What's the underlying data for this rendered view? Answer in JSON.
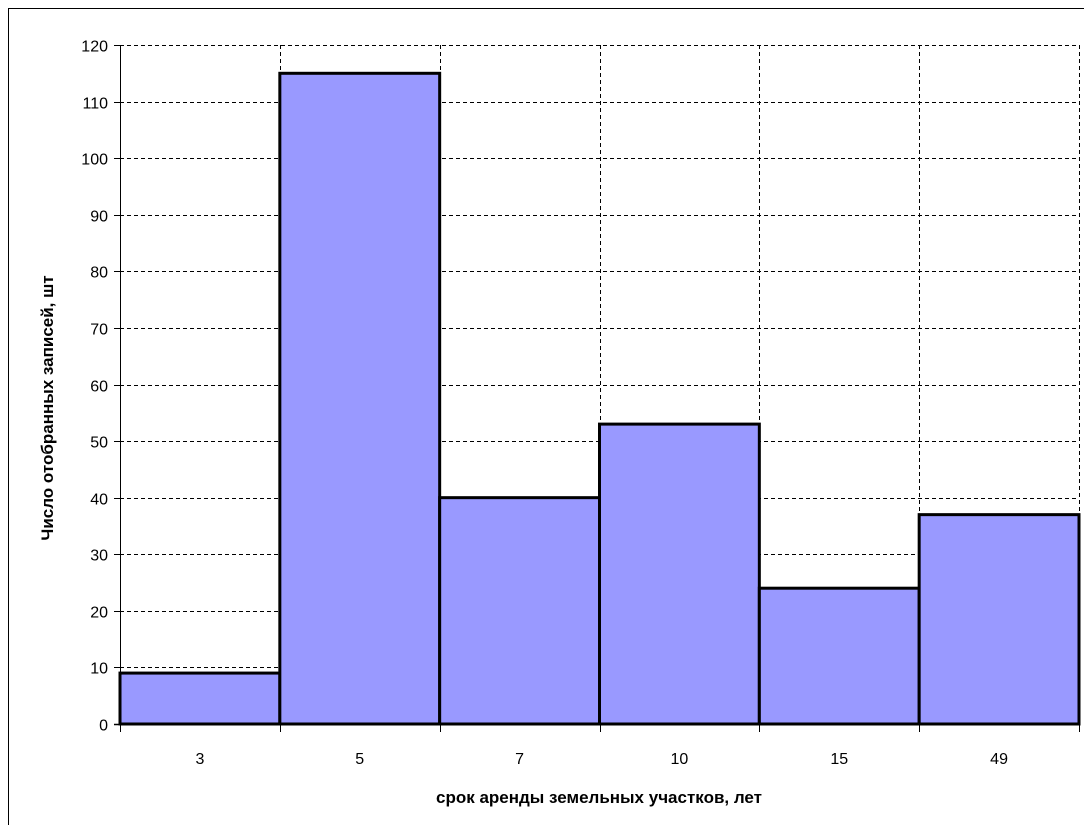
{
  "chart_data": {
    "type": "bar",
    "categories": [
      "3",
      "5",
      "7",
      "10",
      "15",
      "49"
    ],
    "values": [
      9,
      115,
      40,
      53,
      24,
      37
    ],
    "title": "",
    "xlabel": "срок аренды земельных участков, лет",
    "ylabel": "Число отобранных записей, шт",
    "ylim": [
      0,
      120
    ],
    "yticks": [
      "0",
      "10",
      "20",
      "30",
      "40",
      "50",
      "60",
      "70",
      "80",
      "90",
      "100",
      "110",
      "120"
    ],
    "grid": true,
    "grid_style": "dashed",
    "bar_color": "#9999FF",
    "bar_edge_color": "#000000"
  }
}
